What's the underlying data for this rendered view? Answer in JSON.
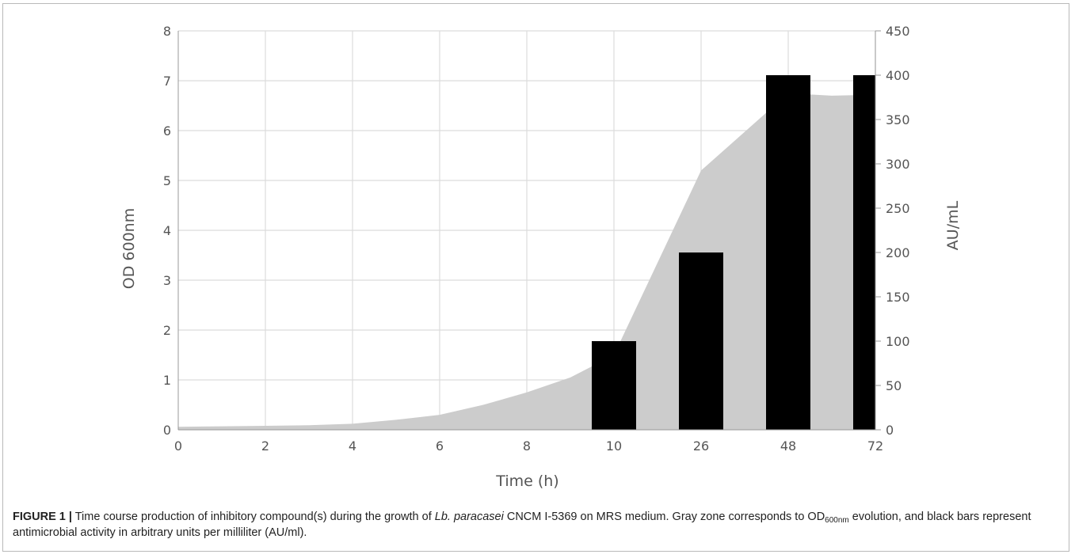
{
  "chart_data": {
    "type": "bar",
    "categories": [
      "0",
      "2",
      "4",
      "6",
      "8",
      "10",
      "26",
      "48",
      "72"
    ],
    "xlabel": "Time (h)",
    "ylabel_left": "OD 600nm",
    "ylabel_right": "AU/mL",
    "ylim_left": [
      0,
      8
    ],
    "yticks_left": [
      "0",
      "1",
      "2",
      "3",
      "4",
      "5",
      "6",
      "7",
      "8"
    ],
    "ylim_right": [
      0,
      450
    ],
    "yticks_right": [
      "0",
      "50",
      "100",
      "150",
      "200",
      "250",
      "300",
      "350",
      "400",
      "450"
    ],
    "grid": true,
    "series": [
      {
        "type": "area",
        "axis": "left",
        "color": "#cccccc",
        "points": [
          [
            0,
            0.06
          ],
          [
            0.5,
            0.07
          ],
          [
            1,
            0.08
          ],
          [
            1.5,
            0.09
          ],
          [
            2,
            0.12
          ],
          [
            2.5,
            0.2
          ],
          [
            3,
            0.3
          ],
          [
            3.5,
            0.5
          ],
          [
            4,
            0.75
          ],
          [
            4.5,
            1.05
          ],
          [
            5,
            1.5
          ],
          [
            6,
            5.2
          ],
          [
            7,
            6.75
          ],
          [
            7.5,
            6.7
          ],
          [
            8,
            6.72
          ]
        ]
      },
      {
        "type": "bar",
        "axis": "right",
        "color": "#000000",
        "values": [
          0,
          0,
          0,
          0,
          0,
          100,
          200,
          400,
          400
        ]
      }
    ]
  },
  "caption": {
    "figure_label": "FIGURE 1 |",
    "text_1": " Time course production of inhibitory compound(s) during the growth of ",
    "organism": "Lb. paracasei",
    "text_2": " CNCM I-5369 on MRS medium. Gray zone corresponds to OD",
    "subscript": "600nm",
    "text_3": " evolution, and black bars represent antimicrobial activity in arbitrary units per milliliter (AU/ml)."
  }
}
